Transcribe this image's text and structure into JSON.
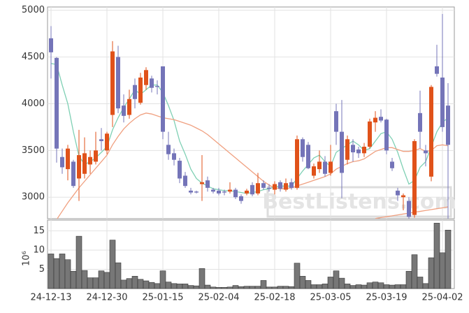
{
  "chart_data": [
    {
      "type": "candlestick",
      "watermark": "BestListens.com",
      "ylim": [
        2770,
        5035
      ],
      "yticks": [
        3000,
        3500,
        4000,
        4500,
        5000
      ],
      "grid": true,
      "up_color": "#e0521a",
      "down_color": "#7474b8",
      "open": [
        4700,
        4490,
        3430,
        3300,
        3380,
        3200,
        3250,
        3350,
        3380,
        3620,
        3500,
        3880,
        4500,
        3980,
        3880,
        4200,
        4010,
        4200,
        4270,
        4190,
        4400,
        3560,
        3470,
        3390,
        3230,
        3070,
        3060,
        3140,
        3180,
        3080,
        3070,
        3060,
        3060,
        3080,
        3010,
        3040,
        3130,
        3040,
        3150,
        3100,
        3080,
        3160,
        3080,
        3160,
        3100,
        3620,
        3560,
        3230,
        3300,
        3380,
        3260,
        3920,
        3700,
        3400,
        3560,
        3510,
        3470,
        3540,
        3800,
        3860,
        3830,
        3380,
        3070,
        3000,
        2960,
        2810,
        3900,
        3500,
        3220,
        4400,
        4280,
        3980
      ],
      "high": [
        4830,
        4500,
        3520,
        3560,
        3400,
        3720,
        3640,
        3500,
        3700,
        3740,
        3700,
        4670,
        4620,
        4100,
        4150,
        4270,
        4330,
        4390,
        4300,
        4250,
        4400,
        3700,
        3520,
        3420,
        3270,
        3100,
        3070,
        3450,
        3220,
        3100,
        3100,
        3080,
        3160,
        3100,
        3030,
        3090,
        3160,
        3260,
        3180,
        3140,
        3170,
        3180,
        3200,
        3200,
        3660,
        3640,
        3590,
        3360,
        3500,
        3440,
        3560,
        4000,
        4040,
        3660,
        3620,
        3540,
        3580,
        3840,
        3920,
        3940,
        3840,
        3420,
        3100,
        3040,
        3000,
        3620,
        4140,
        3560,
        4200,
        4630,
        4960,
        4220
      ],
      "low": [
        4270,
        3370,
        3250,
        3180,
        3100,
        2960,
        3200,
        3250,
        3350,
        3500,
        3460,
        3750,
        3900,
        3800,
        3840,
        3950,
        3990,
        4150,
        4120,
        4100,
        3620,
        3400,
        3340,
        3150,
        3100,
        3030,
        3040,
        2960,
        3060,
        3040,
        3020,
        3020,
        3040,
        2980,
        2930,
        3020,
        3010,
        3020,
        3080,
        3060,
        3030,
        3060,
        3060,
        3080,
        3080,
        3380,
        3300,
        3200,
        3260,
        3220,
        3230,
        3560,
        2990,
        3350,
        3380,
        3420,
        3430,
        3520,
        3700,
        3800,
        3460,
        3280,
        2960,
        2860,
        2760,
        2780,
        3520,
        3330,
        3170,
        4290,
        3700,
        2700
      ],
      "close": [
        4550,
        3520,
        3320,
        3520,
        3120,
        3450,
        3470,
        3430,
        3500,
        3600,
        3680,
        4560,
        3950,
        3870,
        4050,
        4050,
        4280,
        4360,
        4170,
        4180,
        3700,
        3460,
        3400,
        3200,
        3120,
        3050,
        3050,
        3160,
        3100,
        3060,
        3040,
        3050,
        3080,
        3000,
        2960,
        3070,
        3030,
        3150,
        3100,
        3090,
        3140,
        3090,
        3150,
        3100,
        3620,
        3430,
        3310,
        3330,
        3380,
        3250,
        3380,
        3700,
        3260,
        3620,
        3480,
        3470,
        3540,
        3810,
        3850,
        3820,
        3500,
        3310,
        3020,
        3020,
        2790,
        3600,
        3700,
        3470,
        4180,
        4320,
        3750,
        3560
      ],
      "series": [
        {
          "color": "#7fd0b4",
          "values": [
            4430,
            4420,
            4200,
            4000,
            3700,
            3440,
            3350,
            3380,
            3420,
            3480,
            3540,
            3720,
            3850,
            3960,
            4050,
            4150,
            4100,
            4150,
            4200,
            4200,
            4120,
            3980,
            3820,
            3600,
            3460,
            3300,
            3200,
            3150,
            3120,
            3090,
            3080,
            3070,
            3070,
            3060,
            3050,
            3040,
            3050,
            3060,
            3080,
            3090,
            3110,
            3120,
            3120,
            3120,
            3200,
            3280,
            3350,
            3420,
            3450,
            3380,
            3330,
            3480,
            3520,
            3560,
            3600,
            3560,
            3500,
            3520,
            3600,
            3680,
            3700,
            3620,
            3480,
            3300,
            3140,
            3180,
            3320,
            3380,
            3540,
            3700,
            3800,
            3850
          ]
        },
        {
          "color": "#f0a080",
          "values": [
            null,
            2760,
            2850,
            2940,
            3020,
            3100,
            3170,
            3240,
            3310,
            3380,
            3450,
            3560,
            3650,
            3730,
            3790,
            3840,
            3880,
            3900,
            3890,
            3870,
            3850,
            3840,
            3830,
            3810,
            3790,
            3770,
            3740,
            3710,
            3670,
            3620,
            3570,
            3520,
            3470,
            3420,
            3370,
            3320,
            3270,
            3220,
            3170,
            3130,
            3100,
            3090,
            3090,
            3100,
            3120,
            3140,
            3160,
            3180,
            3200,
            3220,
            3250,
            3300,
            3330,
            3360,
            3380,
            3390,
            3410,
            3450,
            3490,
            3510,
            3530,
            3530,
            3510,
            3490,
            3490,
            3500,
            3520,
            3490,
            3500,
            3550,
            3560,
            3550
          ]
        },
        {
          "color": "#f0a080",
          "values": [
            null,
            null,
            null,
            null,
            null,
            null,
            null,
            null,
            null,
            null,
            null,
            null,
            null,
            null,
            null,
            null,
            null,
            null,
            null,
            null,
            null,
            null,
            null,
            null,
            null,
            null,
            null,
            null,
            null,
            null,
            null,
            null,
            null,
            null,
            null,
            null,
            null,
            null,
            null,
            null,
            null,
            null,
            null,
            null,
            null,
            null,
            null,
            null,
            null,
            null,
            null,
            null,
            null,
            null,
            null,
            null,
            null,
            null,
            2772,
            2782,
            2791,
            2801,
            2810,
            2820,
            2829,
            2839,
            2848,
            2858,
            2867,
            2877,
            2886,
            2896
          ]
        }
      ]
    },
    {
      "type": "bar",
      "y_label": "10⁶",
      "color": "#777777",
      "ylim": [
        0,
        17.8
      ],
      "yticks": [
        5,
        10,
        15
      ],
      "grid": true,
      "categories": [
        "24-12-13",
        null,
        null,
        null,
        null,
        null,
        null,
        null,
        null,
        null,
        "24-12-30",
        null,
        null,
        null,
        null,
        null,
        null,
        null,
        null,
        null,
        "25-01-15",
        null,
        null,
        null,
        null,
        null,
        null,
        null,
        null,
        null,
        "25-02-04",
        null,
        null,
        null,
        null,
        null,
        null,
        null,
        null,
        null,
        "25-02-18",
        null,
        null,
        null,
        null,
        null,
        null,
        null,
        null,
        null,
        "25-03-05",
        null,
        null,
        null,
        null,
        null,
        null,
        null,
        null,
        null,
        "25-03-19",
        null,
        null,
        null,
        null,
        null,
        null,
        null,
        null,
        null,
        "25-04-02",
        null
      ],
      "values": [
        9,
        7.8,
        9,
        7.5,
        4.5,
        13.6,
        4.7,
        2.8,
        2.8,
        4.6,
        4.2,
        12.6,
        6.7,
        2.2,
        2.6,
        3.2,
        2.4,
        2.0,
        1.6,
        1.3,
        4.6,
        1.7,
        1.3,
        1.2,
        1.2,
        0.8,
        0.7,
        5.2,
        0.9,
        0.4,
        0.3,
        0.3,
        0.4,
        0.8,
        0.5,
        0.6,
        0.6,
        0.6,
        2.1,
        0.4,
        0.4,
        0.6,
        0.6,
        0.5,
        6.6,
        3.2,
        2.1,
        1.0,
        1.0,
        1.2,
        3.0,
        4.6,
        2.7,
        1.2,
        0.8,
        1.0,
        0.9,
        1.5,
        1.7,
        1.5,
        1.0,
        0.9,
        1.0,
        1.0,
        4.5,
        8.8,
        3.0,
        1.3,
        8.0,
        17.0,
        9.3,
        15.2
      ]
    }
  ]
}
